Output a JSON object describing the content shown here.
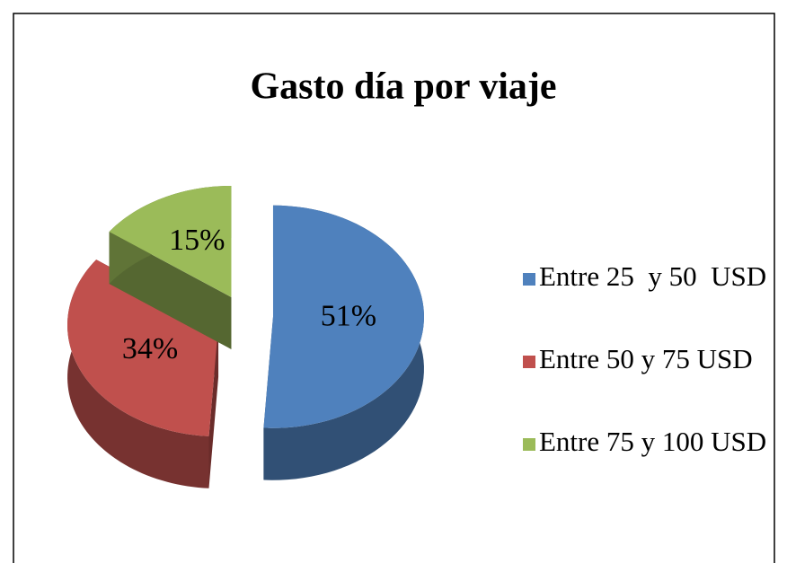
{
  "chart_data": {
    "type": "pie",
    "title": "Gasto día por viaje",
    "categories": [
      "Entre 25  y 50  USD",
      "Entre 50 y 75 USD",
      "Entre 75 y 100 USD"
    ],
    "values": [
      51,
      34,
      15
    ],
    "value_labels": [
      "51%",
      "34%",
      "15%"
    ],
    "colors": [
      "#4f81bd",
      "#c0504d",
      "#9bbb59"
    ],
    "legend": "right"
  }
}
